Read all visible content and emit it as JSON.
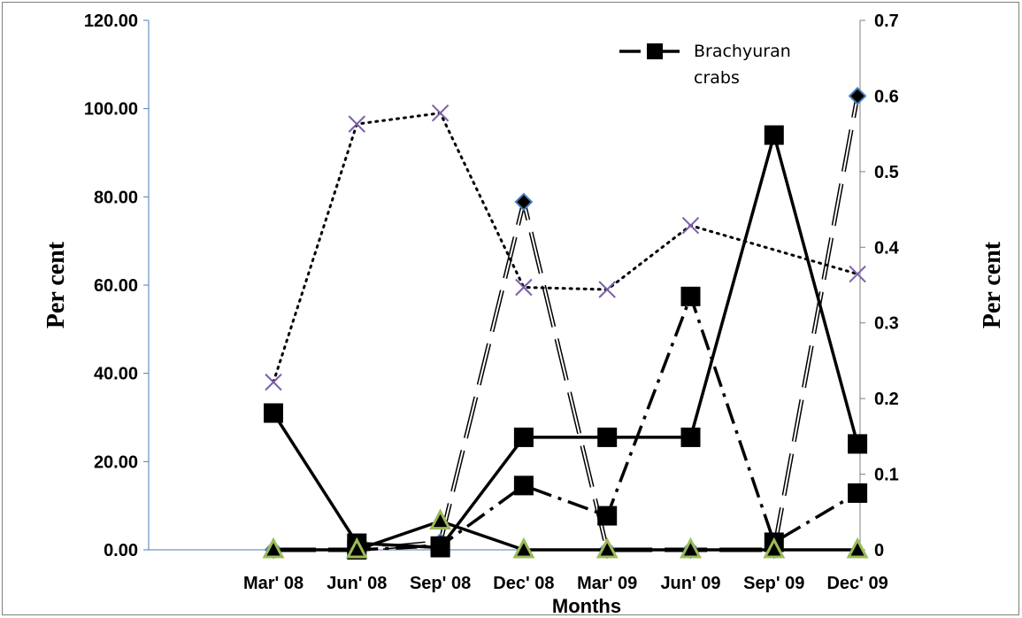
{
  "chart_data": {
    "type": "line",
    "xlabel": "Months",
    "ylabel_left": "Per cent",
    "ylabel_right": "Per cent",
    "categories": [
      "Mar' 08",
      "Jun' 08",
      "Sep' 08",
      "Dec' 08",
      "Mar' 09",
      "Jun' 09",
      "Sep' 09",
      "Dec' 09"
    ],
    "y_left": {
      "min": 0,
      "max": 120,
      "ticks": [
        "0.00",
        "20.00",
        "40.00",
        "60.00",
        "80.00",
        "100.00",
        "120.00"
      ]
    },
    "y_right": {
      "min": 0,
      "max": 0.7,
      "ticks": [
        "0",
        "0.1",
        "0.2",
        "0.3",
        "0.4",
        "0.5",
        "0.6",
        "0.7"
      ]
    },
    "legend": {
      "placement": "top-right",
      "entries": [
        "Brachyuran",
        "crabs"
      ]
    },
    "series": [
      {
        "axis": "left",
        "style": "solid",
        "marker": "square",
        "color": "#000000",
        "values": [
          31,
          1.5,
          0.5,
          25.5,
          25.5,
          25.5,
          94,
          24
        ]
      },
      {
        "name": "Brachyuran crabs",
        "axis": "right",
        "style": "dashdot",
        "marker": "square",
        "color": "#000000",
        "values": [
          null,
          0,
          0.005,
          0.085,
          0.045,
          0.335,
          0.01,
          0.075
        ]
      },
      {
        "axis": "left",
        "style": "dotted",
        "marker": "x",
        "color": "#000000",
        "marker_color": "#7b60a8",
        "values": [
          38,
          96.5,
          99,
          59.5,
          59,
          73.5,
          null,
          62.5
        ]
      },
      {
        "axis": "right",
        "style": "double-dash",
        "marker": "diamond",
        "color": "#000000",
        "marker_color": "#4a7ebb",
        "values": [
          0,
          0,
          0.01,
          0.46,
          0,
          0,
          0,
          0.6
        ]
      },
      {
        "axis": "left",
        "style": "solid",
        "marker": "triangle",
        "color": "#000000",
        "marker_color": "#9bbb59",
        "values": [
          0,
          0,
          6.5,
          0,
          0,
          0,
          0,
          0
        ]
      }
    ]
  }
}
